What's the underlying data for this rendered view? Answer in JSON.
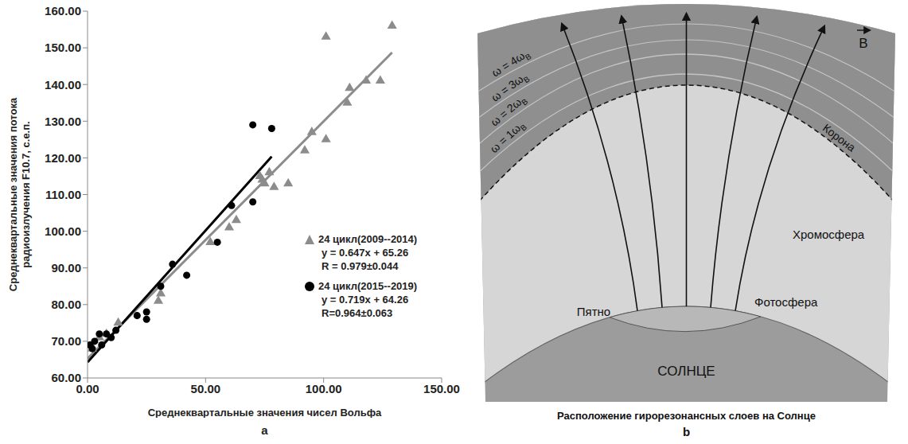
{
  "chart_data": {
    "type": "scatter",
    "panel": "a",
    "x_label": "Среднеквартальные значения чисел Вольфа",
    "y_label": "Среднеквартальные значения потока радиоизлучения F10.7, с.е.п.",
    "xlim": [
      0,
      150
    ],
    "xticks": [
      {
        "value": 0,
        "label": "0.00"
      },
      {
        "value": 50,
        "label": "50.00"
      },
      {
        "value": 100,
        "label": "100.00"
      },
      {
        "value": 150,
        "label": "150.00"
      }
    ],
    "ylim": [
      60,
      160
    ],
    "yticks": [
      {
        "value": 60,
        "label": "60.00"
      },
      {
        "value": 70,
        "label": "70.00"
      },
      {
        "value": 80,
        "label": "80.00"
      },
      {
        "value": 90,
        "label": "90.00"
      },
      {
        "value": 100,
        "label": "100.00"
      },
      {
        "value": 110,
        "label": "110.00"
      },
      {
        "value": 120,
        "label": "120.00"
      },
      {
        "value": 130,
        "label": "130.00"
      },
      {
        "value": 140,
        "label": "140.00"
      },
      {
        "value": 150,
        "label": "150.00"
      },
      {
        "value": 160,
        "label": "160.00"
      }
    ],
    "grid": false,
    "legend": "lower right",
    "series": [
      {
        "name": "24 цикл(2009--2014)",
        "color": "#8c8c8c",
        "marker": "triangle",
        "x": [
          2,
          5,
          8,
          13,
          30,
          31,
          52,
          60,
          63,
          73,
          74,
          75,
          77,
          79,
          85,
          92,
          95,
          101,
          101,
          110,
          111,
          118,
          124,
          129
        ],
        "values": [
          68,
          71,
          72,
          75,
          81,
          83,
          97,
          101,
          103,
          115,
          114,
          113,
          116,
          112,
          113,
          122,
          127,
          125,
          153,
          135,
          139,
          141,
          141,
          156
        ],
        "fit": {
          "slope": 0.647,
          "intercept": 65.26,
          "x": [
            0,
            129
          ]
        },
        "fit_labels": [
          "y = 0.647x + 65.26",
          "R = 0.979±0.044"
        ]
      },
      {
        "name": "24 цикл(2015--2019)",
        "color": "#000000",
        "marker": "circle",
        "x": [
          1,
          2,
          3,
          5,
          6,
          8,
          10,
          12,
          21,
          25,
          25,
          31,
          36,
          42,
          55,
          61,
          70,
          70,
          78
        ],
        "values": [
          69,
          68,
          70,
          72,
          69,
          72,
          71,
          73,
          77,
          76,
          78,
          85,
          91,
          88,
          97,
          107,
          108,
          129,
          128
        ],
        "fit": {
          "slope": 0.719,
          "intercept": 64.26,
          "x": [
            0,
            78
          ]
        },
        "fit_labels": [
          "y = 0.719x + 64.26",
          "R=0.964±0.063"
        ]
      }
    ]
  },
  "diagram": {
    "panel": "b",
    "caption": "Расположение гирорезонансных слоев на Солнце",
    "field_label": "B",
    "layers": [
      {
        "label": "ω = 4ω",
        "subscript": "B"
      },
      {
        "label": "ω = 3ω",
        "subscript": "B"
      },
      {
        "label": "ω = 2ω",
        "subscript": "B"
      },
      {
        "label": "ω = 1ω",
        "subscript": "B"
      }
    ],
    "regions": {
      "corona": "Корона",
      "chromosphere": "Хромосфера",
      "photosphere": "Фотосфера",
      "spot": "Пятно",
      "sun": "СОЛНЦЕ"
    }
  }
}
